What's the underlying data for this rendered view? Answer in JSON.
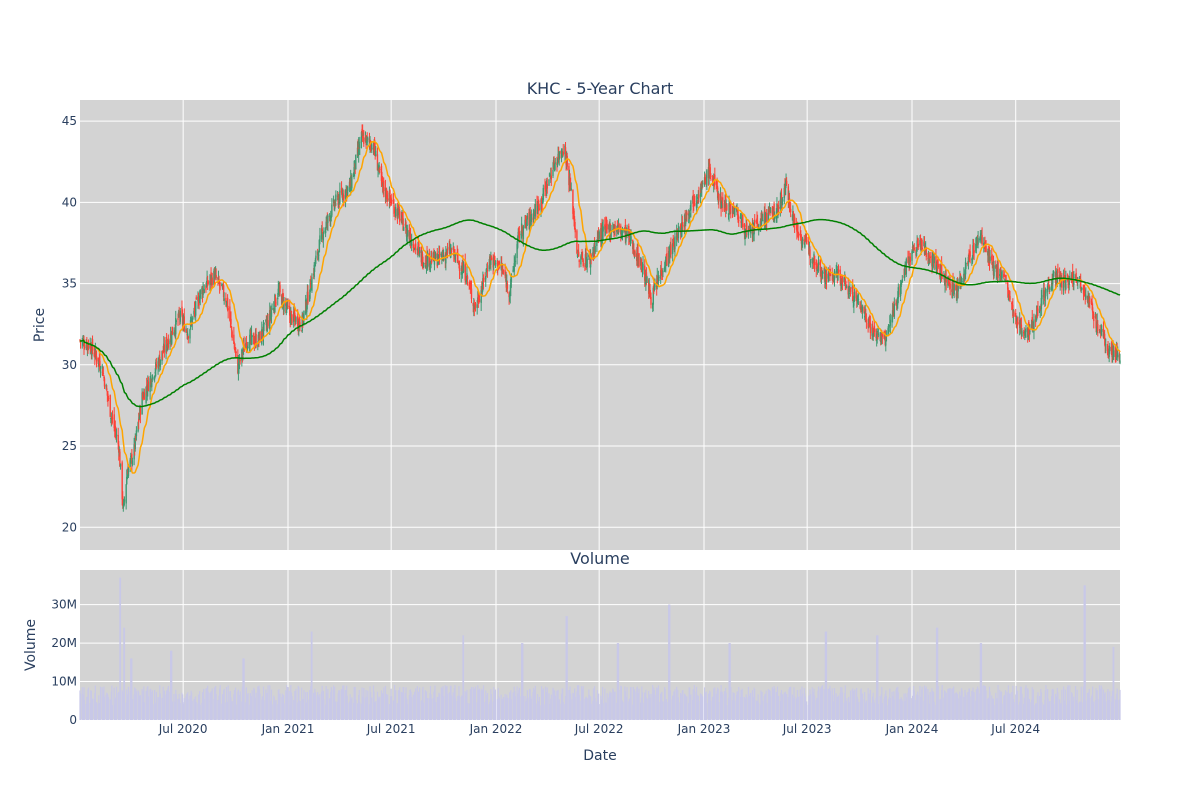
{
  "chart_data": [
    {
      "type": "candlestick",
      "title": "KHC - 5-Year Chart",
      "ylabel": "Price",
      "ylim": [
        18.6,
        46.3
      ],
      "yticks": [
        20,
        25,
        30,
        35,
        40,
        45
      ],
      "x_range": [
        "2020-01-02",
        "2024-12-31"
      ],
      "grid": true,
      "colors": {
        "increasing": "#3d9970",
        "decreasing": "#ff4136",
        "ma_short": "#ffa500",
        "ma_long": "#008000",
        "plot_bg": "#d3d3d3"
      },
      "close_keypoints": [
        [
          "2020-01-02",
          31.5
        ],
        [
          "2020-01-20",
          31.2
        ],
        [
          "2020-02-10",
          29.8
        ],
        [
          "2020-02-25",
          27.0
        ],
        [
          "2020-03-10",
          25.0
        ],
        [
          "2020-03-18",
          21.0
        ],
        [
          "2020-03-25",
          23.5
        ],
        [
          "2020-04-05",
          24.5
        ],
        [
          "2020-04-20",
          28.0
        ],
        [
          "2020-05-10",
          29.5
        ],
        [
          "2020-06-05",
          31.5
        ],
        [
          "2020-06-25",
          33.0
        ],
        [
          "2020-07-10",
          32.0
        ],
        [
          "2020-08-01",
          34.5
        ],
        [
          "2020-08-25",
          35.5
        ],
        [
          "2020-09-15",
          34.0
        ],
        [
          "2020-10-05",
          29.8
        ],
        [
          "2020-10-20",
          31.5
        ],
        [
          "2020-11-10",
          31.5
        ],
        [
          "2020-11-25",
          32.5
        ],
        [
          "2020-12-15",
          34.5
        ],
        [
          "2021-01-05",
          33.0
        ],
        [
          "2021-01-25",
          32.5
        ],
        [
          "2021-02-10",
          35.0
        ],
        [
          "2021-03-01",
          38.0
        ],
        [
          "2021-03-25",
          40.0
        ],
        [
          "2021-04-20",
          41.0
        ],
        [
          "2021-05-10",
          44.0
        ],
        [
          "2021-05-31",
          43.5
        ],
        [
          "2021-06-15",
          41.0
        ],
        [
          "2021-07-10",
          39.5
        ],
        [
          "2021-08-01",
          38.0
        ],
        [
          "2021-08-25",
          36.5
        ],
        [
          "2021-09-20",
          36.5
        ],
        [
          "2021-10-15",
          37.0
        ],
        [
          "2021-11-10",
          35.5
        ],
        [
          "2021-11-25",
          33.5
        ],
        [
          "2021-12-10",
          35.0
        ],
        [
          "2021-12-20",
          36.5
        ],
        [
          "2022-01-10",
          36.0
        ],
        [
          "2022-01-25",
          34.5
        ],
        [
          "2022-02-10",
          38.0
        ],
        [
          "2022-03-01",
          39.0
        ],
        [
          "2022-03-20",
          40.0
        ],
        [
          "2022-04-15",
          42.5
        ],
        [
          "2022-05-01",
          43.5
        ],
        [
          "2022-05-15",
          40.0
        ],
        [
          "2022-05-25",
          36.5
        ],
        [
          "2022-06-15",
          36.5
        ],
        [
          "2022-07-01",
          38.0
        ],
        [
          "2022-07-25",
          38.5
        ],
        [
          "2022-08-20",
          38.0
        ],
        [
          "2022-09-15",
          36.0
        ],
        [
          "2022-10-01",
          34.0
        ],
        [
          "2022-10-20",
          36.0
        ],
        [
          "2022-11-10",
          37.5
        ],
        [
          "2022-12-10",
          40.0
        ],
        [
          "2022-12-31",
          41.0
        ],
        [
          "2023-01-10",
          42.0
        ],
        [
          "2023-01-31",
          40.0
        ],
        [
          "2023-02-25",
          39.5
        ],
        [
          "2023-03-20",
          38.0
        ],
        [
          "2023-04-15",
          39.0
        ],
        [
          "2023-05-10",
          39.5
        ],
        [
          "2023-05-25",
          41.0
        ],
        [
          "2023-06-10",
          38.5
        ],
        [
          "2023-07-05",
          37.0
        ],
        [
          "2023-08-01",
          35.5
        ],
        [
          "2023-08-25",
          35.5
        ],
        [
          "2023-09-15",
          34.5
        ],
        [
          "2023-10-05",
          33.5
        ],
        [
          "2023-10-25",
          32.0
        ],
        [
          "2023-11-15",
          31.5
        ],
        [
          "2023-12-05",
          34.0
        ],
        [
          "2023-12-25",
          36.5
        ],
        [
          "2024-01-15",
          37.5
        ],
        [
          "2024-02-05",
          36.5
        ],
        [
          "2024-02-25",
          35.5
        ],
        [
          "2024-03-20",
          34.5
        ],
        [
          "2024-04-10",
          36.5
        ],
        [
          "2024-05-01",
          38.0
        ],
        [
          "2024-05-20",
          36.0
        ],
        [
          "2024-06-10",
          35.5
        ],
        [
          "2024-07-01",
          32.5
        ],
        [
          "2024-07-25",
          32.0
        ],
        [
          "2024-08-15",
          34.0
        ],
        [
          "2024-09-05",
          35.5
        ],
        [
          "2024-09-25",
          35.0
        ],
        [
          "2024-10-15",
          35.5
        ],
        [
          "2024-11-01",
          34.5
        ],
        [
          "2024-11-20",
          32.5
        ],
        [
          "2024-12-10",
          31.0
        ],
        [
          "2024-12-31",
          30.5
        ]
      ],
      "series": [
        {
          "name": "",
          "kind": "moving-average-short",
          "color": "#ffa500"
        },
        {
          "name": "",
          "kind": "moving-average-long",
          "color": "#008000"
        }
      ]
    },
    {
      "type": "bar",
      "title": "Volume",
      "xlabel": "Date",
      "ylabel": "Volume",
      "ylim": [
        0,
        39000000
      ],
      "yticks": [
        0,
        10000000,
        20000000,
        30000000
      ],
      "ytick_labels": [
        "0",
        "10M",
        "20M",
        "30M"
      ],
      "xticks": [
        "2020-07-01",
        "2021-01-01",
        "2021-07-01",
        "2022-01-01",
        "2022-07-01",
        "2023-01-01",
        "2023-07-01",
        "2024-01-01",
        "2024-07-01"
      ],
      "xtick_labels": [
        "Jul 2020",
        "Jan 2021",
        "Jul 2021",
        "Jan 2022",
        "Jul 2022",
        "Jan 2023",
        "Jul 2023",
        "Jan 2024",
        "Jul 2024"
      ],
      "bar_color": "#c8c8e8",
      "typical_volume": 7000000,
      "spikes": [
        [
          "2020-03-13",
          37000000
        ],
        [
          "2020-03-20",
          24000000
        ],
        [
          "2020-04-01",
          16000000
        ],
        [
          "2020-06-10",
          18000000
        ],
        [
          "2020-10-15",
          16000000
        ],
        [
          "2021-02-12",
          23000000
        ],
        [
          "2021-11-05",
          22000000
        ],
        [
          "2022-02-16",
          20000000
        ],
        [
          "2022-05-05",
          27000000
        ],
        [
          "2022-08-03",
          20000000
        ],
        [
          "2022-11-01",
          30000000
        ],
        [
          "2023-02-15",
          20000000
        ],
        [
          "2023-08-03",
          23000000
        ],
        [
          "2023-11-01",
          22000000
        ],
        [
          "2024-02-14",
          24000000
        ],
        [
          "2024-05-01",
          20000000
        ],
        [
          "2024-10-30",
          35000000
        ],
        [
          "2024-12-20",
          19000000
        ]
      ]
    }
  ]
}
